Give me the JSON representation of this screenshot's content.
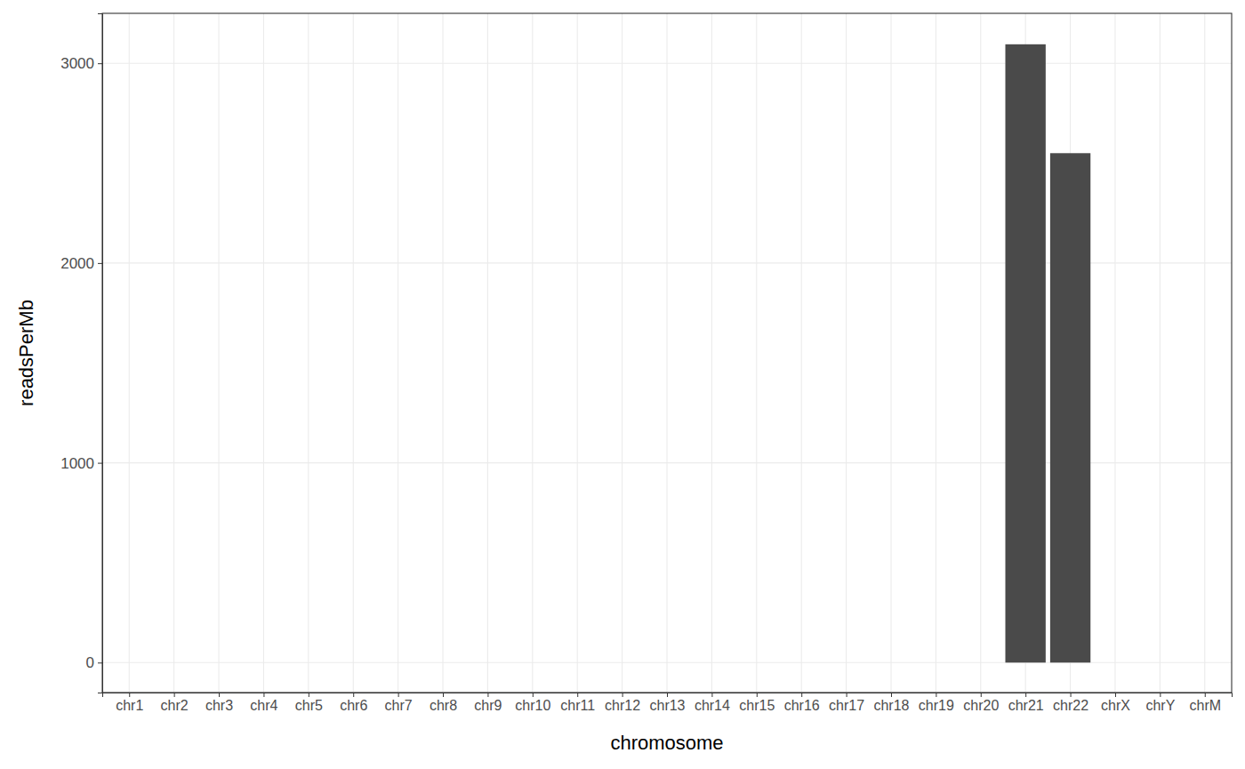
{
  "chart_data": {
    "type": "bar",
    "x_label": "chromosome",
    "y_label": "readsPerMb",
    "categories": [
      "chr1",
      "chr2",
      "chr3",
      "chr4",
      "chr5",
      "chr6",
      "chr7",
      "chr8",
      "chr9",
      "chr10",
      "chr11",
      "chr12",
      "chr13",
      "chr14",
      "chr15",
      "chr16",
      "chr17",
      "chr18",
      "chr19",
      "chr20",
      "chr21",
      "chr22",
      "chrX",
      "chrY",
      "chrM"
    ],
    "values": [
      0,
      0,
      0,
      0,
      0,
      0,
      0,
      0,
      0,
      0,
      0,
      0,
      0,
      0,
      0,
      0,
      0,
      0,
      0,
      0,
      3095,
      2550,
      0,
      0,
      0
    ],
    "color": "#4a4a4a",
    "ylim": [
      -150,
      3250
    ],
    "yticks": [
      0,
      1000,
      2000,
      3000
    ],
    "grid": true
  }
}
